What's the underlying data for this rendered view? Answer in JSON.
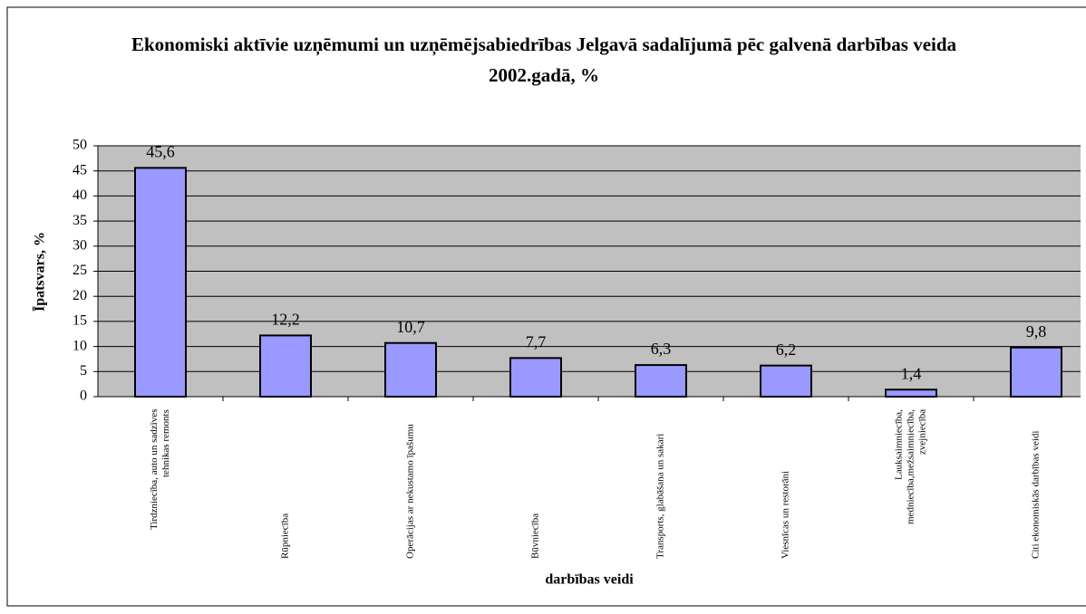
{
  "chart_data": {
    "type": "bar",
    "title": "Ekonomiski aktīvie uzņēmumi un uzņēmējsabiedrības Jelgavā sadalījumā pēc galvenā darbības veida 2002.gadā, %",
    "x_label": "darbības veidi",
    "y_label": "Īpatsvars, %",
    "categories": [
      "Tirdzniecība, auto un sadzīves tehnikas remonts",
      "Rūpniecība",
      "Operācijas ar nekustamo īpašumu",
      "Būvniecība",
      "Transports, glabāšana un sakari",
      "Viesnīcas un restorāni",
      "Lauksaimniecība, medniecība,mežsaimniecība, zvejniecība",
      "Citi ekonomiskās darbības veidi"
    ],
    "values": [
      45.6,
      12.2,
      10.7,
      7.7,
      6.3,
      6.2,
      1.4,
      9.8
    ],
    "value_labels": [
      "45,6",
      "12,2",
      "10,7",
      "7,7",
      "6,3",
      "6,2",
      "1,4",
      "9,8"
    ],
    "color": "#9999ff",
    "ylim": [
      0,
      50
    ],
    "yticks": [
      0,
      5,
      10,
      15,
      20,
      25,
      30,
      35,
      40,
      45,
      50
    ],
    "grid": true
  }
}
